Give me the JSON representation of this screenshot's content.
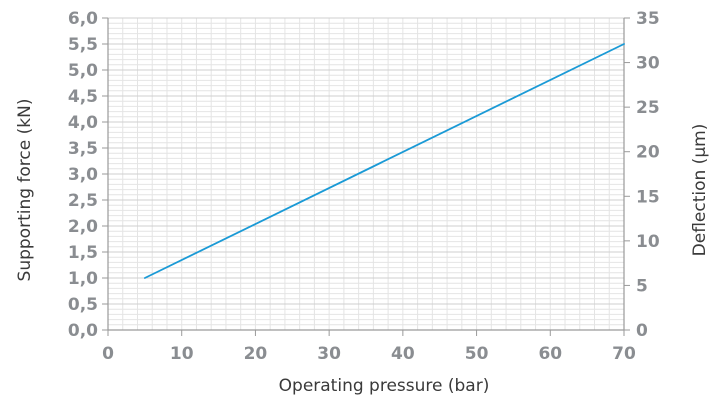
{
  "chart_data": {
    "type": "line",
    "title": "",
    "xlabel": "Operating pressure (bar)",
    "ylabel": "Supporting force (kN)",
    "y2label": "Deflection (µm)",
    "xlim": [
      0,
      70
    ],
    "ylim": [
      0,
      6
    ],
    "y2lim": [
      0,
      35
    ],
    "x_ticks": [
      "0",
      "10",
      "20",
      "30",
      "40",
      "50",
      "60",
      "70"
    ],
    "y_ticks": [
      "0,0",
      "0,5",
      "1,0",
      "1,5",
      "2,0",
      "2,5",
      "3,0",
      "3,5",
      "4,0",
      "4,5",
      "5,0",
      "5,5",
      "6,0"
    ],
    "y2_ticks": [
      "0",
      "5",
      "10",
      "15",
      "20",
      "25",
      "30",
      "35"
    ],
    "grid": true,
    "series": [
      {
        "x": [
          5,
          70
        ],
        "y": [
          1.0,
          5.5
        ],
        "color": "#1a9ad6"
      }
    ]
  }
}
